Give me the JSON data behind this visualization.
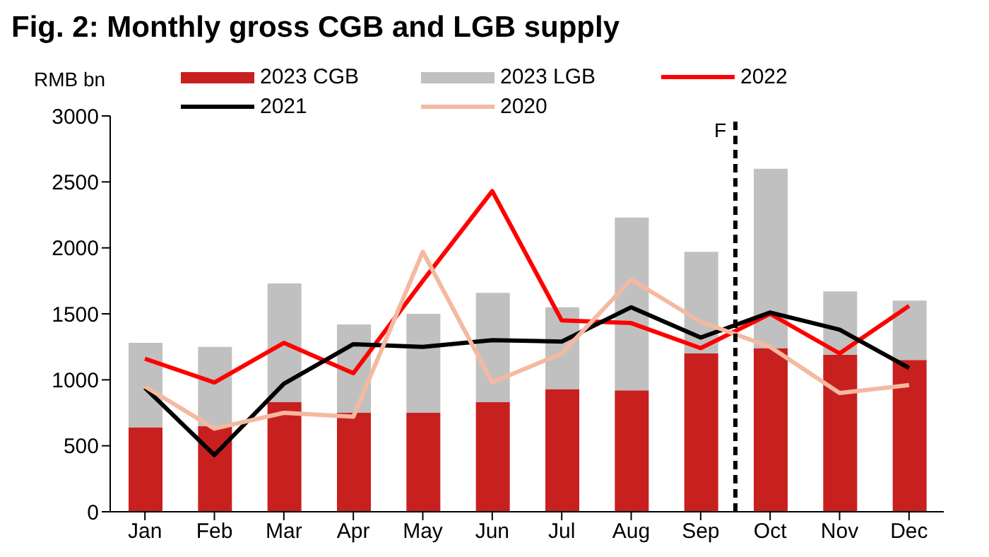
{
  "chart_data": {
    "type": "bar",
    "title": "Fig. 2:  Monthly gross CGB and LGB supply",
    "ylabel": "RMB bn",
    "categories": [
      "Jan",
      "Feb",
      "Mar",
      "Apr",
      "May",
      "Jun",
      "Jul",
      "Aug",
      "Sep",
      "Oct",
      "Nov",
      "Dec"
    ],
    "stacked": true,
    "ylim": [
      0,
      3000
    ],
    "yticks": [
      0,
      500,
      1000,
      1500,
      2000,
      2500,
      3000
    ],
    "grid": false,
    "legend": "top",
    "marker": "none",
    "series": [
      {
        "name": "2023 CGB",
        "color": "#c8201f",
        "values": [
          640,
          650,
          830,
          750,
          750,
          830,
          930,
          920,
          1200,
          1240,
          1190,
          1150
        ]
      },
      {
        "name": "2023 LGB",
        "color": "#c0c0c0",
        "values": [
          640,
          600,
          900,
          670,
          750,
          830,
          620,
          1310,
          770,
          1360,
          480,
          450
        ]
      },
      {
        "name": "2022",
        "type": "line",
        "color": "#ff0000",
        "values": [
          1160,
          980,
          1280,
          1050,
          1750,
          2430,
          1450,
          1430,
          1240,
          1500,
          1200,
          1560
        ]
      },
      {
        "name": "2021",
        "type": "line",
        "color": "#000000",
        "values": [
          940,
          430,
          970,
          1270,
          1250,
          1300,
          1290,
          1550,
          1320,
          1510,
          1380,
          1090
        ]
      },
      {
        "name": "2020",
        "type": "line",
        "color": "#f4b9a0",
        "values": [
          950,
          630,
          750,
          720,
          1970,
          980,
          1200,
          1760,
          1440,
          1250,
          900,
          960
        ]
      }
    ],
    "annotations": [
      "F"
    ]
  }
}
